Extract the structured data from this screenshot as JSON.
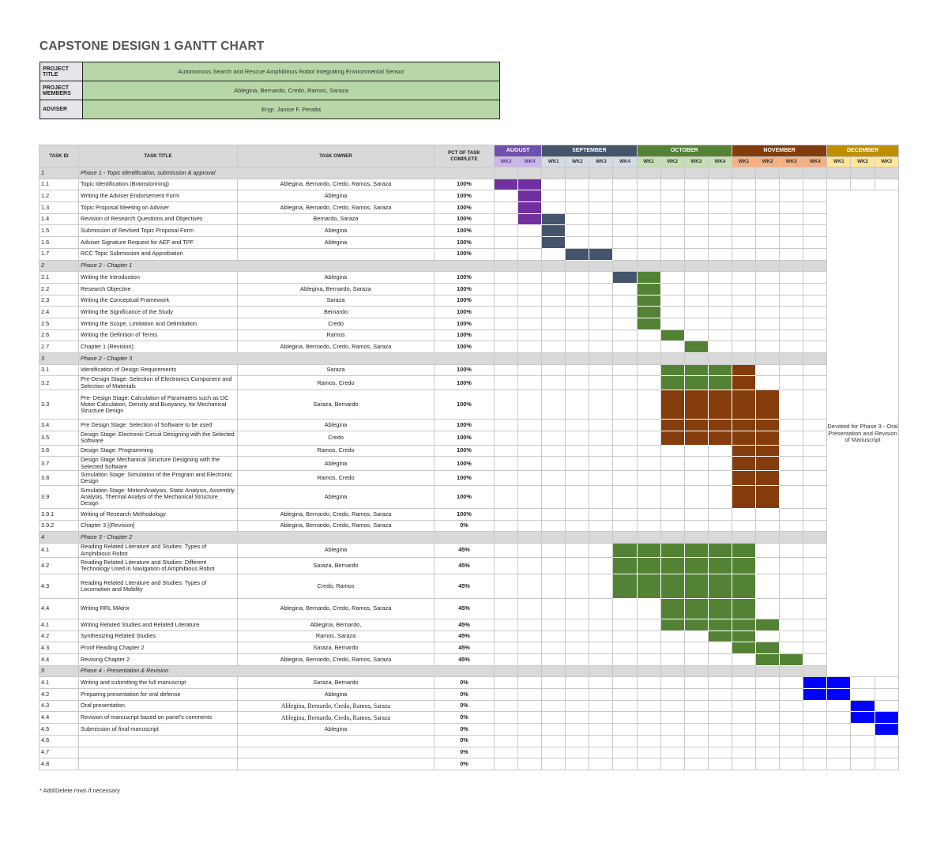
{
  "title": "CAPSTONE DESIGN 1 GANTT CHART",
  "info": [
    {
      "label": "PROJECT TITLE",
      "value": "Autonomous Search and Rescue Amphibious Robot Integrating Environmental Sensor"
    },
    {
      "label": "PROJECT MEMBERS",
      "value": "Ablegina, Bernardo, Credo, Ramos, Saraza"
    },
    {
      "label": "ADVISER",
      "value": "Engr. Janice F. Peralta"
    }
  ],
  "headers": {
    "task_id": "TASK ID",
    "task_title": "TASK TITLE",
    "task_owner": "TASK OWNER",
    "pct": "PCT OF TASK COMPLETE"
  },
  "months": [
    {
      "name": "AUGUST",
      "color": "#6f4fb0",
      "week_bg": "#c9b8e6",
      "weeks": [
        "WK3",
        "WK4"
      ]
    },
    {
      "name": "SEPTEMBER",
      "color": "#44546a",
      "week_bg": "#d6dce4",
      "weeks": [
        "WK1",
        "WK2",
        "WK3",
        "WK4"
      ]
    },
    {
      "name": "OCTOBER",
      "color": "#548235",
      "week_bg": "#c6e0b4",
      "weeks": [
        "WK1",
        "WK2",
        "WK3",
        "WK4"
      ]
    },
    {
      "name": "NOVEMBER",
      "color": "#843c0c",
      "week_bg": "#f4b183",
      "weeks": [
        "WK1",
        "WK2",
        "WK3",
        "WK4"
      ]
    },
    {
      "name": "DECEMBER",
      "color": "#bf8f00",
      "week_bg": "#ffe699",
      "weeks": [
        "WK1",
        "WK2",
        "WK3"
      ]
    }
  ],
  "note": "Devoted for Phase 3 - Oral Presentation and Revision of Manuscript",
  "rows": [
    {
      "id": "1",
      "title": "Phase 1 - Topic identification, submission & approval",
      "phase": true
    },
    {
      "id": "1.1",
      "title": "Topic Identification (Brainstorming)",
      "owner": "Ablegina, Bernardo, Credo, Ramos, Saraza",
      "pct": "100%",
      "bars": [
        {
          "s": 0,
          "e": 1,
          "c": "#7030a0"
        }
      ]
    },
    {
      "id": "1.2",
      "title": "Writing the Adviser Endorsement Form",
      "owner": "Ablegina",
      "pct": "100%",
      "bars": [
        {
          "s": 1,
          "e": 1,
          "c": "#7030a0"
        }
      ]
    },
    {
      "id": "1.3",
      "title": "Topic Proposal Meeting on Adviser",
      "owner": "Ablegina, Bernardo, Credo, Ramos, Saraza",
      "pct": "100%",
      "bars": [
        {
          "s": 1,
          "e": 1,
          "c": "#7030a0"
        }
      ]
    },
    {
      "id": "1.4",
      "title": "Revision of Research Questions and Objectives",
      "owner": "Bernardo, Saraza",
      "pct": "100%",
      "bars": [
        {
          "s": 1,
          "e": 1,
          "c": "#7030a0"
        },
        {
          "s": 2,
          "e": 2,
          "c": "#44546a"
        }
      ]
    },
    {
      "id": "1.5",
      "title": "Submission of Revised Topic Proposal Form",
      "owner": "Ablegina",
      "pct": "100%",
      "bars": [
        {
          "s": 2,
          "e": 2,
          "c": "#44546a"
        }
      ]
    },
    {
      "id": "1.6",
      "title": "Adviser Signature Request for AEF and TPF",
      "owner": "Ablegina",
      "pct": "100%",
      "bars": [
        {
          "s": 2,
          "e": 2,
          "c": "#44546a"
        }
      ]
    },
    {
      "id": "1.7",
      "title": "RCC Topic Submission and Approbation",
      "owner": "",
      "pct": "100%",
      "bars": [
        {
          "s": 3,
          "e": 4,
          "c": "#44546a"
        }
      ]
    },
    {
      "id": "2",
      "title": "Phase 2 - Chapter 1",
      "phase": true
    },
    {
      "id": "2.1",
      "title": "Writing the Introduction",
      "owner": "Ablegina",
      "pct": "100%",
      "bars": [
        {
          "s": 5,
          "e": 5,
          "c": "#44546a"
        },
        {
          "s": 6,
          "e": 6,
          "c": "#548235"
        }
      ]
    },
    {
      "id": "2.2",
      "title": "Research Objective",
      "owner": "Ablegina, Bernardo, Saraza",
      "pct": "100%",
      "bars": [
        {
          "s": 6,
          "e": 6,
          "c": "#548235"
        }
      ]
    },
    {
      "id": "2.3",
      "title": "Writing the Conceptual Framework",
      "owner": "Saraza",
      "pct": "100%",
      "bars": [
        {
          "s": 6,
          "e": 6,
          "c": "#548235"
        }
      ]
    },
    {
      "id": "2.4",
      "title": "Writing the Significance of the Study",
      "owner": "Bernardo",
      "pct": "100%",
      "bars": [
        {
          "s": 6,
          "e": 6,
          "c": "#548235"
        }
      ]
    },
    {
      "id": "2.5",
      "title": "Writing the Scope, Limitation and Delimitation",
      "owner": "Credo",
      "pct": "100%",
      "bars": [
        {
          "s": 6,
          "e": 6,
          "c": "#548235"
        }
      ]
    },
    {
      "id": "2.6",
      "title": "Writing the Definition of Terms",
      "owner": "Ramos",
      "pct": "100%",
      "bars": [
        {
          "s": 7,
          "e": 7,
          "c": "#548235"
        }
      ]
    },
    {
      "id": "2.7",
      "title": "Chapter 1 (Revision)",
      "owner": "Ablegina, Bernardo, Credo, Ramos, Saraza",
      "pct": "100%",
      "bars": [
        {
          "s": 8,
          "e": 8,
          "c": "#548235"
        }
      ]
    },
    {
      "id": "3",
      "title": "Phase 2 - Chapter 3",
      "phase": true
    },
    {
      "id": "3.1",
      "title": "Identification of Design Requirements",
      "owner": "Saraza",
      "pct": "100%",
      "bars": [
        {
          "s": 7,
          "e": 9,
          "c": "#548235"
        },
        {
          "s": 10,
          "e": 10,
          "c": "#843c0c"
        }
      ]
    },
    {
      "id": "3.2",
      "title": "Pre-Design Stage: Selection of Electronics Component and Selection of Materials",
      "owner": "Ramos, Credo",
      "pct": "100%",
      "bars": [
        {
          "s": 7,
          "e": 9,
          "c": "#548235"
        },
        {
          "s": 10,
          "e": 10,
          "c": "#843c0c"
        }
      ]
    },
    {
      "id": "3.3",
      "title": "Pre- Design Stage: Calculation of Paramaters such as DC Motor Calculation, Density and Buoyancy, for Mechanical Structure Design",
      "owner": "Saraza, Bernardo",
      "pct": "100%",
      "bars": [
        {
          "s": 7,
          "e": 11,
          "c": "#843c0c"
        }
      ]
    },
    {
      "id": "3.4",
      "title": "Pre Design Stage: Selection of Software to be used",
      "owner": "Ablegina",
      "pct": "100%",
      "bars": [
        {
          "s": 7,
          "e": 11,
          "c": "#843c0c"
        }
      ]
    },
    {
      "id": "3.5",
      "title": "Design Stage: Electronic Circuit Designing with the Selected Software",
      "owner": "Credo",
      "pct": "100%",
      "bars": [
        {
          "s": 7,
          "e": 11,
          "c": "#843c0c"
        }
      ]
    },
    {
      "id": "3.6",
      "title": "Design Stage: Programming",
      "owner": "Ramos, Credo",
      "pct": "100%",
      "bars": [
        {
          "s": 10,
          "e": 11,
          "c": "#843c0c"
        }
      ]
    },
    {
      "id": "3.7",
      "title": "Design Stage Mechanical Structure Designing with the Selected Software",
      "owner": "Ablegina",
      "pct": "100%",
      "bars": [
        {
          "s": 10,
          "e": 11,
          "c": "#843c0c"
        }
      ]
    },
    {
      "id": "3.8",
      "title": "Simulation Stage: Simulation of the Program and Electronic Design",
      "owner": "Ramos, Credo",
      "pct": "100%",
      "bars": [
        {
          "s": 10,
          "e": 11,
          "c": "#843c0c"
        }
      ]
    },
    {
      "id": "3.9",
      "title": "Simulation Stage: MotionAnalysis, Static Analysis, Assembly Analysis, Thermal Analysi of the Mechanical Structure Design",
      "owner": "Ablegina",
      "pct": "100%",
      "bars": [
        {
          "s": 10,
          "e": 11,
          "c": "#843c0c"
        }
      ]
    },
    {
      "id": "3.9.1",
      "title": "Writing of Research Methodology",
      "owner": "Ablegina, Bernardo, Credo, Ramos, Saraza",
      "pct": "100%",
      "bars": []
    },
    {
      "id": "3.9.2",
      "title": "Chapter 3 [(Revision]",
      "owner": "Ablegina, Bernardo, Credo, Ramos, Saraza",
      "pct": "0%",
      "bars": []
    },
    {
      "id": "4",
      "title": "Phase 3 - Chapter 2",
      "phase": true
    },
    {
      "id": "4.1",
      "title": "Reading Related Literature and Studies: Types of Amphibious Robot",
      "owner": "Ablegina",
      "pct": "45%",
      "bars": [
        {
          "s": 5,
          "e": 10,
          "c": "#548235"
        }
      ]
    },
    {
      "id": "4.2",
      "title": "Reading Related Literature and Studies: Different Technology Used in Navigation of Amphibious Robot",
      "owner": "Saraza, Bernardo",
      "pct": "45%",
      "bars": [
        {
          "s": 5,
          "e": 10,
          "c": "#548235"
        }
      ]
    },
    {
      "id": "4.3",
      "title": "Reading Related Literature and Studies: Types of Locomotion and Mobility",
      "owner": "Credo, Ramos",
      "pct": "45%",
      "bars": [
        {
          "s": 5,
          "e": 10,
          "c": "#548235"
        }
      ]
    },
    {
      "id": "4.4",
      "title": "Writing RRL MAtrix",
      "owner": "Ablegina, Bernardo, Credo, Ramos, Saraza",
      "pct": "45%",
      "bars": [
        {
          "s": 7,
          "e": 10,
          "c": "#548235"
        }
      ]
    },
    {
      "id": "4.1",
      "title": "Writing Related Studies and Related Literature",
      "owner": "Ablegina, Bernardo,",
      "pct": "45%",
      "bars": [
        {
          "s": 7,
          "e": 11,
          "c": "#548235"
        }
      ]
    },
    {
      "id": "4.2",
      "title": "Synthesizing Related Studies",
      "owner": "Ramos, Saraza",
      "pct": "45%",
      "bars": [
        {
          "s": 9,
          "e": 10,
          "c": "#548235"
        }
      ]
    },
    {
      "id": "4.3",
      "title": "Proof Reading Chapter 2",
      "owner": "Saraza, Bernardo",
      "pct": "45%",
      "bars": [
        {
          "s": 10,
          "e": 11,
          "c": "#548235"
        }
      ]
    },
    {
      "id": "4.4",
      "title": "Revising Chapter 2",
      "owner": "Ablegina, Bernardo, Credo, Ramos, Saraza",
      "pct": "45%",
      "bars": [
        {
          "s": 11,
          "e": 12,
          "c": "#548235"
        }
      ]
    },
    {
      "id": "5",
      "title": "Phase 4 - Presentation & Revision",
      "phase": true
    },
    {
      "id": "4.1",
      "title": "Writing and submitting the full manuscript",
      "owner": "Saraza, Bernardo",
      "pct": "0%",
      "bars": [
        {
          "s": 13,
          "e": 14,
          "c": "#0000ff"
        }
      ]
    },
    {
      "id": "4.2",
      "title": "Preparing presentation for oral defense",
      "owner": "Ablegina",
      "pct": "0%",
      "bars": [
        {
          "s": 13,
          "e": 14,
          "c": "#0000ff"
        }
      ]
    },
    {
      "id": "4.3",
      "title": "Oral presentation",
      "owner": "Ablegina, Bernardo, Credo, Ramos, Saraza",
      "serif": true,
      "pct": "0%",
      "bars": [
        {
          "s": 15,
          "e": 15,
          "c": "#0000ff"
        }
      ]
    },
    {
      "id": "4.4",
      "title": "Revision of manuscript based on panel's comments",
      "owner": "Ablegina, Bernardo, Credo, Ramos, Saraza",
      "serif": true,
      "pct": "0%",
      "bars": [
        {
          "s": 15,
          "e": 16,
          "c": "#0000ff"
        }
      ]
    },
    {
      "id": "4.5",
      "title": "Submission of final manuscript",
      "owner": "Ablegina",
      "pct": "0%",
      "bars": [
        {
          "s": 16,
          "e": 16,
          "c": "#0000ff"
        }
      ]
    },
    {
      "id": "4.6",
      "title": "",
      "owner": "",
      "pct": "0%",
      "bars": []
    },
    {
      "id": "4.7",
      "title": "",
      "owner": "",
      "pct": "0%",
      "bars": []
    },
    {
      "id": "4.8",
      "title": "",
      "owner": "",
      "pct": "0%",
      "bars": []
    }
  ],
  "footnote": "* Add/Delete rows if necessary"
}
